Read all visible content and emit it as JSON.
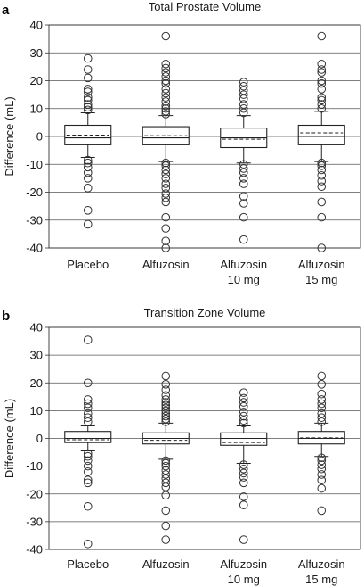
{
  "chart_data": [
    {
      "panel": "a",
      "type": "box",
      "title": "Total Prostate Volume",
      "ylabel": "Difference (mL)",
      "ylim": [
        -40,
        40
      ],
      "yticks": [
        40,
        30,
        20,
        10,
        0,
        -10,
        -20,
        -30,
        -40
      ],
      "grid": true,
      "categories": [
        {
          "lines": [
            "Placebo"
          ]
        },
        {
          "lines": [
            "Alfuzosin"
          ]
        },
        {
          "lines": [
            "Alfuzosin",
            "10 mg"
          ]
        },
        {
          "lines": [
            "Alfuzosin",
            "15 mg"
          ]
        }
      ],
      "boxes": [
        {
          "whisker_low": -7.5,
          "q1": -3,
          "median": -0.5,
          "mean": 0.5,
          "q3": 4,
          "whisker_high": 8.5,
          "outliers": [
            28,
            24,
            21,
            17,
            16,
            14,
            13,
            11.5,
            10.5,
            9.5,
            -8.5,
            -9.5,
            -11,
            -13,
            -15,
            -18.5,
            -26.5,
            -31.5
          ]
        },
        {
          "whisker_low": -9,
          "q1": -3,
          "median": -0.5,
          "mean": 0.3,
          "q3": 3.5,
          "whisker_high": 7.5,
          "outliers": [
            36,
            26,
            24.5,
            23,
            21.5,
            20,
            19,
            17,
            15.5,
            14,
            12.5,
            11,
            10,
            9,
            8,
            -9.5,
            -10.5,
            -12,
            -13.5,
            -15,
            -17,
            -18.5,
            -20.5,
            -22,
            -23.5,
            -29,
            -33,
            -37.5,
            -40
          ]
        },
        {
          "whisker_low": -9.5,
          "q1": -4,
          "median": -0.5,
          "mean": -1,
          "q3": 3,
          "whisker_high": 7.5,
          "outliers": [
            19.5,
            18,
            16.5,
            15,
            13.5,
            11.5,
            10,
            8.5,
            -10,
            -11.5,
            -13,
            -15,
            -17,
            -21.5,
            -24,
            -29,
            -37
          ]
        },
        {
          "whisker_low": -9,
          "q1": -3,
          "median": 0,
          "mean": 1.3,
          "q3": 4,
          "whisker_high": 9,
          "outliers": [
            36,
            26,
            24,
            23,
            20,
            19,
            17,
            14,
            13,
            11.5,
            10,
            -9.5,
            -10.5,
            -12,
            -14,
            -16,
            -18,
            -23.5,
            -29,
            -40
          ]
        }
      ]
    },
    {
      "panel": "b",
      "type": "box",
      "title": "Transition Zone Volume",
      "ylabel": "Difference (mL)",
      "ylim": [
        -40,
        40
      ],
      "yticks": [
        40,
        30,
        20,
        10,
        0,
        -10,
        -20,
        -30,
        -40
      ],
      "grid": true,
      "categories": [
        {
          "lines": [
            "Placebo"
          ]
        },
        {
          "lines": [
            "Alfuzosin"
          ]
        },
        {
          "lines": [
            "Alfuzosin",
            "10 mg"
          ]
        },
        {
          "lines": [
            "Alfuzosin",
            "15 mg"
          ]
        }
      ],
      "boxes": [
        {
          "whisker_low": -4.5,
          "q1": -1.5,
          "median": 0,
          "mean": -0.5,
          "q3": 2.5,
          "whisker_high": 4.5,
          "outliers": [
            35.5,
            20,
            14,
            12.5,
            11,
            9,
            7.5,
            6,
            -5.5,
            -6.5,
            -8,
            -10,
            -12,
            -15,
            -16,
            -24.5,
            -38
          ]
        },
        {
          "whisker_low": -7.5,
          "q1": -2,
          "median": 0,
          "mean": -0.7,
          "q3": 2,
          "whisker_high": 5.5,
          "outliers": [
            22.5,
            19.5,
            17.5,
            15.5,
            14,
            13,
            12,
            11,
            10,
            9,
            8,
            7,
            6,
            -8,
            -9,
            -10,
            -11.5,
            -13,
            -14.5,
            -16,
            -17.5,
            -20.5,
            -26,
            -31.5,
            -36.5
          ]
        },
        {
          "whisker_low": -9,
          "q1": -2.5,
          "median": 0,
          "mean": -1.5,
          "q3": 2,
          "whisker_high": 4.5,
          "outliers": [
            16.5,
            14.5,
            13,
            11.5,
            9.5,
            8,
            6.5,
            5.5,
            -9.5,
            -11,
            -12.5,
            -14,
            -16,
            -21,
            -24,
            -36.5
          ]
        },
        {
          "whisker_low": -6.5,
          "q1": -2,
          "median": 0,
          "mean": 0.2,
          "q3": 2.5,
          "whisker_high": 5.5,
          "outliers": [
            22.5,
            19.5,
            16,
            14,
            12.5,
            11,
            9,
            7.5,
            6,
            -7,
            -8,
            -9.5,
            -11,
            -13,
            -15,
            -18,
            -26
          ]
        }
      ]
    }
  ]
}
